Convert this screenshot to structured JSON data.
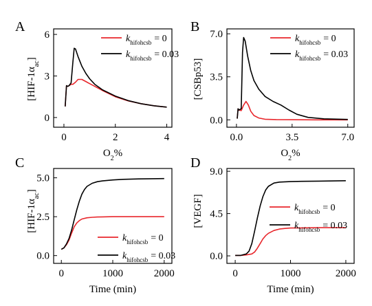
{
  "chart_data": [
    {
      "panel_label": "A",
      "type": "line",
      "ylabel_main": "[HIF-1α",
      "ylabel_sub": "ac",
      "ylabel_close": "]",
      "xlabel_main": "O",
      "xlabel_sub": "2",
      "xlabel_suffix": "%",
      "xlim": [
        -0.4,
        4.2
      ],
      "ylim": [
        -0.7,
        6.4
      ],
      "xticks": [
        0,
        2,
        4
      ],
      "xtick_labels": [
        "0",
        "2",
        "4"
      ],
      "yticks": [
        0,
        3,
        6
      ],
      "ytick_labels": [
        "0",
        "3",
        "6"
      ],
      "legend": {
        "position": "top-right",
        "items": [
          {
            "k": "k",
            "sub": "hifohcsb",
            "value": "= 0",
            "color": "#e8262b"
          },
          {
            "k": "k",
            "sub": "hifohcsb",
            "value": "= 0.03",
            "color": "#000000"
          }
        ]
      },
      "series": [
        {
          "color": "#e8262b",
          "x": [
            0.05,
            0.1,
            0.15,
            0.2,
            0.28,
            0.35,
            0.45,
            0.55,
            0.7,
            0.85,
            1.0,
            1.2,
            1.5,
            2.0,
            2.5,
            3.0,
            3.5,
            4.0
          ],
          "y": [
            0.8,
            2.3,
            2.25,
            2.3,
            2.4,
            2.4,
            2.55,
            2.75,
            2.75,
            2.6,
            2.45,
            2.25,
            1.95,
            1.5,
            1.2,
            1.0,
            0.85,
            0.75
          ]
        },
        {
          "color": "#000000",
          "x": [
            0.05,
            0.1,
            0.15,
            0.2,
            0.28,
            0.35,
            0.4,
            0.45,
            0.55,
            0.7,
            0.85,
            1.0,
            1.2,
            1.5,
            2.0,
            2.5,
            3.0,
            3.5,
            4.0
          ],
          "y": [
            0.8,
            2.3,
            2.25,
            2.3,
            2.5,
            4.0,
            5.0,
            4.95,
            4.4,
            3.7,
            3.2,
            2.8,
            2.4,
            2.0,
            1.55,
            1.22,
            1.0,
            0.85,
            0.75
          ]
        }
      ]
    },
    {
      "panel_label": "B",
      "type": "line",
      "ylabel_main": "[CSBp53]",
      "ylabel_sub": "",
      "ylabel_close": "",
      "xlabel_main": "O",
      "xlabel_sub": "2",
      "xlabel_suffix": "%",
      "xlim": [
        -0.6,
        7.4
      ],
      "ylim": [
        -0.6,
        7.4
      ],
      "xticks": [
        0,
        3.5,
        7
      ],
      "xtick_labels": [
        "0.0",
        "3.5",
        "7.0"
      ],
      "yticks": [
        0,
        3.5,
        7
      ],
      "ytick_labels": [
        "0.0",
        "3.5",
        "7.0"
      ],
      "legend": {
        "position": "top-right",
        "items": [
          {
            "k": "k",
            "sub": "hifohcsb",
            "value": "= 0",
            "color": "#e8262b"
          },
          {
            "k": "k",
            "sub": "hifohcsb",
            "value": "= 0.03",
            "color": "#000000"
          }
        ]
      },
      "series": [
        {
          "color": "#e8262b",
          "x": [
            0.05,
            0.1,
            0.15,
            0.3,
            0.45,
            0.6,
            0.75,
            0.9,
            1.1,
            1.4,
            1.8,
            2.5,
            3.5,
            5.0,
            7.0
          ],
          "y": [
            0.1,
            0.9,
            0.8,
            0.75,
            1.2,
            1.5,
            1.2,
            0.7,
            0.35,
            0.15,
            0.05,
            0.02,
            0.01,
            0.0,
            0.0
          ]
        },
        {
          "color": "#000000",
          "x": [
            0.05,
            0.1,
            0.15,
            0.3,
            0.38,
            0.45,
            0.55,
            0.7,
            0.9,
            1.1,
            1.4,
            1.8,
            2.3,
            2.8,
            3.3,
            3.8,
            4.5,
            5.5,
            7.0
          ],
          "y": [
            0.1,
            0.9,
            0.8,
            0.9,
            5.5,
            6.7,
            6.4,
            5.2,
            4.0,
            3.2,
            2.5,
            1.9,
            1.5,
            1.2,
            0.8,
            0.45,
            0.2,
            0.08,
            0.03
          ]
        }
      ]
    },
    {
      "panel_label": "C",
      "type": "line",
      "ylabel_main": "[HIF-1α",
      "ylabel_sub": "ac",
      "ylabel_close": "]",
      "xlabel_main": "Time (min)",
      "xlabel_sub": "",
      "xlabel_suffix": "",
      "xlim": [
        -150,
        2150
      ],
      "ylim": [
        -0.5,
        5.6
      ],
      "xticks": [
        0,
        1000,
        2000
      ],
      "xtick_labels": [
        "0",
        "1000",
        "2000"
      ],
      "yticks": [
        0,
        2.5,
        5
      ],
      "ytick_labels": [
        "0.0",
        "2.5",
        "5.0"
      ],
      "legend": {
        "position": "bottom-right",
        "items": [
          {
            "k": "k",
            "sub": "hifohcsb",
            "value": "= 0",
            "color": "#e8262b"
          },
          {
            "k": "k",
            "sub": "hifohcsb",
            "value": "= 0.03",
            "color": "#000000"
          }
        ]
      },
      "series": [
        {
          "color": "#e8262b",
          "x": [
            0,
            50,
            100,
            150,
            200,
            250,
            300,
            350,
            400,
            500,
            600,
            700,
            800,
            1000,
            1200,
            1500,
            2000
          ],
          "y": [
            0.4,
            0.5,
            0.7,
            1.0,
            1.45,
            1.85,
            2.1,
            2.25,
            2.35,
            2.43,
            2.46,
            2.48,
            2.49,
            2.5,
            2.5,
            2.5,
            2.5
          ]
        },
        {
          "color": "#000000",
          "x": [
            0,
            50,
            100,
            150,
            200,
            250,
            300,
            350,
            400,
            450,
            500,
            600,
            700,
            800,
            1000,
            1200,
            1500,
            2000
          ],
          "y": [
            0.4,
            0.5,
            0.75,
            1.1,
            1.65,
            2.3,
            2.95,
            3.5,
            3.95,
            4.25,
            4.45,
            4.65,
            4.75,
            4.8,
            4.86,
            4.9,
            4.93,
            4.95
          ]
        }
      ]
    },
    {
      "panel_label": "D",
      "type": "line",
      "ylabel_main": "[VEGF]",
      "ylabel_sub": "",
      "ylabel_close": "",
      "xlabel_main": "Time (min)",
      "xlabel_sub": "",
      "xlabel_suffix": "",
      "xlim": [
        -150,
        2150
      ],
      "ylim": [
        -0.8,
        9.3
      ],
      "xticks": [
        0,
        1000,
        2000
      ],
      "xtick_labels": [
        "0",
        "1000",
        "2000"
      ],
      "yticks": [
        0,
        4.5,
        9
      ],
      "ytick_labels": [
        "0.0",
        "4.5",
        "9.0"
      ],
      "legend": {
        "position": "center-right",
        "items": [
          {
            "k": "k",
            "sub": "hifohcsb",
            "value": "= 0",
            "color": "#e8262b"
          },
          {
            "k": "k",
            "sub": "hifohcsb",
            "value": "= 0.03",
            "color": "#000000"
          }
        ]
      },
      "series": [
        {
          "color": "#e8262b",
          "x": [
            0,
            100,
            200,
            300,
            350,
            400,
            450,
            500,
            550,
            600,
            700,
            800,
            900,
            1000,
            1200,
            1500,
            2000
          ],
          "y": [
            0.05,
            0.05,
            0.1,
            0.2,
            0.4,
            0.8,
            1.3,
            1.8,
            2.15,
            2.4,
            2.7,
            2.85,
            2.92,
            2.96,
            2.98,
            3.0,
            3.0
          ]
        },
        {
          "color": "#000000",
          "x": [
            0,
            100,
            200,
            250,
            300,
            350,
            400,
            450,
            500,
            550,
            600,
            700,
            800,
            1000,
            1200,
            1500,
            2000
          ],
          "y": [
            0.05,
            0.05,
            0.2,
            0.5,
            1.3,
            2.6,
            4.0,
            5.3,
            6.3,
            7.0,
            7.4,
            7.75,
            7.85,
            7.9,
            7.93,
            7.95,
            8.0
          ]
        }
      ]
    }
  ]
}
